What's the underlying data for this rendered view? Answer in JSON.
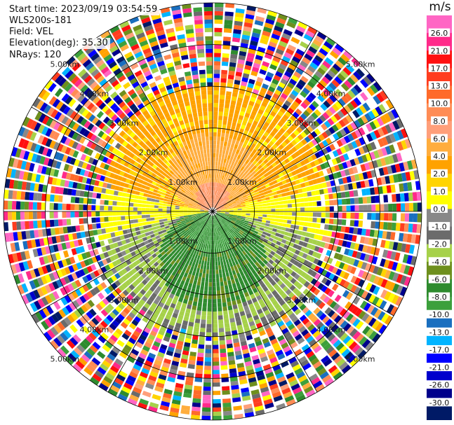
{
  "info": {
    "start_time": "Start time: 2023/09/19 03:54:59",
    "instrument": "WLS200s-181",
    "field": "Field: VEL",
    "elevation": "Elevation(deg): 35.30",
    "nrays": "NRays: 120"
  },
  "chart_data": {
    "type": "heatmap",
    "projection": "polar-ppi",
    "title": "",
    "field": "VEL",
    "units": "m/s",
    "n_rays": 120,
    "elevation_deg": 35.3,
    "max_range_km": 5.0,
    "range_rings_km": [
      1.0,
      2.0,
      3.0,
      4.0,
      5.0
    ],
    "range_labels": [
      "1.00km",
      "2.00km",
      "3.00km",
      "4.00km",
      "5.00km"
    ],
    "spoke_angles_deg": [
      0,
      30,
      60,
      90,
      120,
      150,
      180,
      210,
      240,
      270,
      300,
      330
    ],
    "colorbar": {
      "title": "m/s",
      "tick_labels": [
        "26.0",
        "21.0",
        "17.0",
        "13.0",
        "10.0",
        "8.0",
        "6.0",
        "4.0",
        "2.0",
        "1.0",
        "0.0",
        "-1.0",
        "-2.0",
        "-4.0",
        "-6.0",
        "-8.0",
        "-10.0",
        "-13.0",
        "-17.0",
        "-21.0",
        "-26.0",
        "-30.0"
      ],
      "colors": [
        "#ff66c4",
        "#ff2a8a",
        "#ff1010",
        "#ff3d1f",
        "#ff6a2a",
        "#ff8c55",
        "#ff9f7a",
        "#ffad3d",
        "#ffa200",
        "#ffd400",
        "#ffff00",
        "#888888",
        "#6b6b6b",
        "#a6d14a",
        "#6e8f1d",
        "#2e8b2e",
        "#3ca03c",
        "#1a6fbf",
        "#00b4ff",
        "#0000ff",
        "#0000cc",
        "#00008b",
        "#001a66"
      ]
    },
    "velocity_pattern": [
      {
        "sector": "north (az 0-180 via upper half)",
        "range_km": [
          0.0,
          0.6
        ],
        "value": 10.0
      },
      {
        "sector": "north",
        "range_km": [
          0.6,
          1.5
        ],
        "value": 6.0
      },
      {
        "sector": "north",
        "range_km": [
          1.5,
          2.7
        ],
        "value": 2.0
      },
      {
        "sector": "horizontal band",
        "range_km": [
          0.0,
          2.5
        ],
        "value": 0.0
      },
      {
        "sector": "south",
        "range_km": [
          0.0,
          1.1
        ],
        "value": -8.0
      },
      {
        "sector": "south",
        "range_km": [
          1.1,
          2.5
        ],
        "value": -6.0
      },
      {
        "sector": "south",
        "range_km": [
          2.5,
          3.1
        ],
        "value": -4.0
      },
      {
        "sector": "all",
        "range_km": [
          3.0,
          5.0
        ],
        "value": "noise"
      }
    ]
  }
}
